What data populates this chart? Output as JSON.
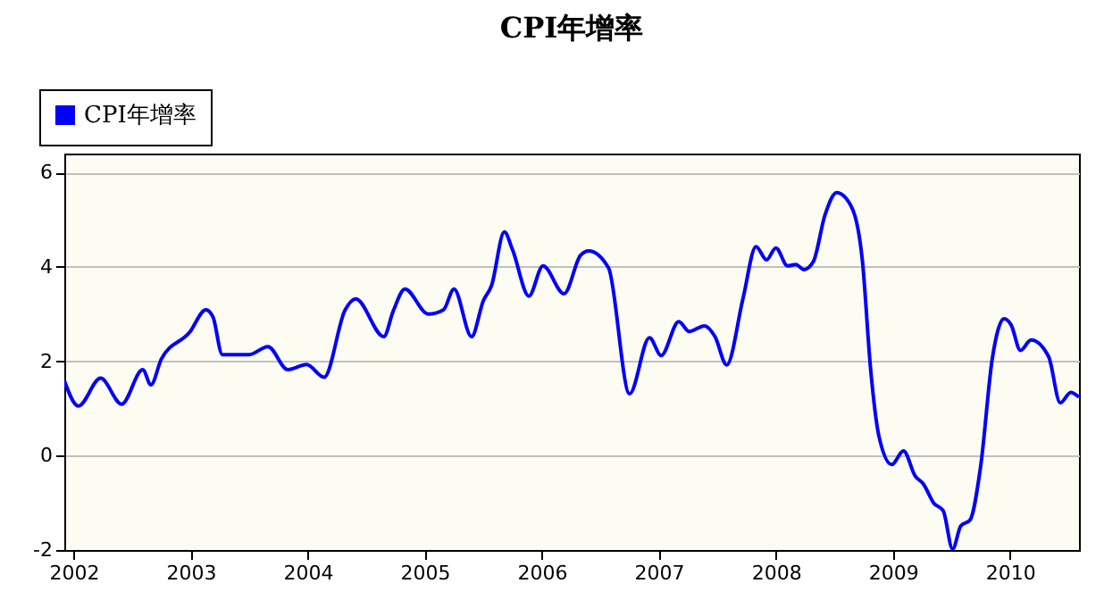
{
  "chart_data": {
    "type": "line",
    "title": "CPI年增率",
    "x": [
      2001.92,
      2002.04,
      2002.23,
      2002.41,
      2002.59,
      2002.66,
      2002.75,
      2002.99,
      2003.13,
      2003.19,
      2003.27,
      2003.5,
      2003.66,
      2003.83,
      2003.99,
      2004.14,
      2004.32,
      2004.41,
      2004.65,
      2004.73,
      2004.83,
      2005.03,
      2005.16,
      2005.25,
      2005.4,
      2005.5,
      2005.57,
      2005.68,
      2005.75,
      2005.89,
      2006.01,
      2006.19,
      2006.33,
      2006.4,
      2006.57,
      2006.75,
      2006.92,
      2007.02,
      2007.17,
      2007.26,
      2007.39,
      2007.48,
      2007.58,
      2007.72,
      2007.83,
      2007.92,
      2008.0,
      2008.1,
      2008.17,
      2008.24,
      2008.32,
      2008.42,
      2008.52,
      2008.65,
      2008.74,
      2008.81,
      2008.88,
      2008.99,
      2009.09,
      2009.19,
      2009.26,
      2009.35,
      2009.43,
      2009.51,
      2009.58,
      2009.66,
      2009.75,
      2009.85,
      2009.95,
      2010.01,
      2010.09,
      2010.18,
      2010.33,
      2010.43,
      2010.52,
      2010.59
    ],
    "series": [
      {
        "name": "CPI年增率",
        "color": "#0000ff",
        "values": [
          1.59,
          1.05,
          1.64,
          1.09,
          1.82,
          1.5,
          2.05,
          2.61,
          3.09,
          2.94,
          2.14,
          2.14,
          2.31,
          1.82,
          1.93,
          1.66,
          3.09,
          3.32,
          2.52,
          3.06,
          3.53,
          3.0,
          3.09,
          3.53,
          2.52,
          3.28,
          3.6,
          4.74,
          4.36,
          3.38,
          4.02,
          3.43,
          4.24,
          4.34,
          3.98,
          1.31,
          2.5,
          2.12,
          2.84,
          2.63,
          2.75,
          2.52,
          1.92,
          3.34,
          4.43,
          4.15,
          4.4,
          4.02,
          4.05,
          3.94,
          4.11,
          5.1,
          5.57,
          5.25,
          4.11,
          1.82,
          0.42,
          -0.19,
          0.1,
          -0.43,
          -0.6,
          -1.01,
          -1.17,
          -1.98,
          -1.49,
          -1.36,
          -0.22,
          2.07,
          2.9,
          2.77,
          2.23,
          2.45,
          2.1,
          1.12,
          1.34,
          1.24
        ]
      }
    ],
    "xlim": [
      2001.92,
      2010.59
    ],
    "xticks": [
      2002,
      2003,
      2004,
      2005,
      2006,
      2007,
      2008,
      2009,
      2010
    ],
    "ylim": [
      -2,
      6.4
    ],
    "yticks": [
      -2,
      0,
      2,
      4,
      6
    ],
    "grid": "y",
    "legend": "top left",
    "marker": "none",
    "line_style": "solid"
  }
}
